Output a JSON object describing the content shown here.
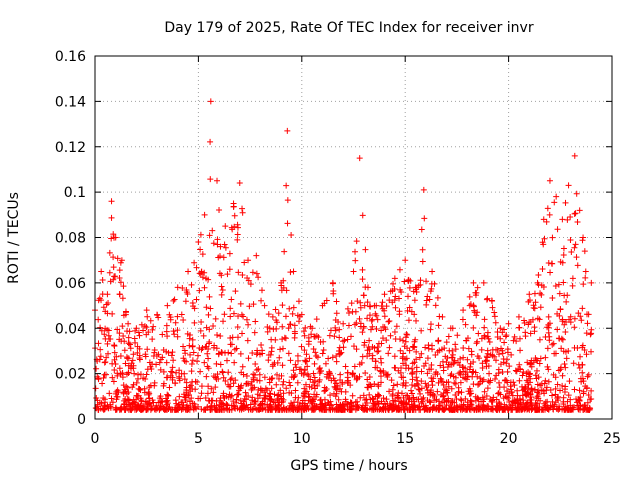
{
  "chart_data": {
    "type": "scatter",
    "title": "Day 179 of 2025, Rate Of TEC Index for receiver invr",
    "xlabel": "GPS time / hours",
    "ylabel": "ROTI / TECUs",
    "xlim": [
      0,
      25
    ],
    "ylim": [
      0,
      0.16
    ],
    "grid": true,
    "marker": "+",
    "series_color": "#ff0000",
    "x_ticks": [
      0,
      5,
      10,
      15,
      20,
      25
    ],
    "x_tick_labels": [
      "0",
      "5",
      "10",
      "15",
      "20",
      "25"
    ],
    "y_ticks": [
      0,
      0.02,
      0.04,
      0.06,
      0.08,
      0.1,
      0.12,
      0.14,
      0.16
    ],
    "y_tick_labels": [
      "0",
      "0.02",
      "0.04",
      "0.06",
      "0.08",
      "0.1",
      "0.12",
      "0.14",
      "0.16"
    ],
    "series": [
      {
        "name": "ROTI",
        "envelope_note": "approximate upper envelope of plotted points",
        "x": [
          0.0,
          0.3,
          0.6,
          0.8,
          1.0,
          1.3,
          1.6,
          2.0,
          2.5,
          3.0,
          3.5,
          4.0,
          4.5,
          5.0,
          5.3,
          5.6,
          5.9,
          6.3,
          6.7,
          7.0,
          7.4,
          7.8,
          8.2,
          8.6,
          9.0,
          9.3,
          9.6,
          10.0,
          10.5,
          11.0,
          11.5,
          12.0,
          12.5,
          12.8,
          13.2,
          13.6,
          14.0,
          14.5,
          15.0,
          15.5,
          15.9,
          16.3,
          16.8,
          17.3,
          17.8,
          18.3,
          18.8,
          19.2,
          19.6,
          20.0,
          20.5,
          21.0,
          21.4,
          21.7,
          22.0,
          22.3,
          22.6,
          22.9,
          23.2,
          23.6,
          24.0
        ],
        "y": [
          0.048,
          0.065,
          0.055,
          0.096,
          0.08,
          0.07,
          0.042,
          0.04,
          0.048,
          0.046,
          0.05,
          0.058,
          0.065,
          0.078,
          0.09,
          0.14,
          0.105,
          0.085,
          0.095,
          0.104,
          0.07,
          0.072,
          0.05,
          0.045,
          0.06,
          0.127,
          0.065,
          0.046,
          0.04,
          0.05,
          0.06,
          0.042,
          0.065,
          0.115,
          0.058,
          0.05,
          0.055,
          0.062,
          0.07,
          0.058,
          0.101,
          0.065,
          0.045,
          0.04,
          0.048,
          0.06,
          0.06,
          0.052,
          0.04,
          0.042,
          0.045,
          0.055,
          0.06,
          0.088,
          0.105,
          0.098,
          0.088,
          0.103,
          0.116,
          0.08,
          0.06
        ]
      }
    ]
  }
}
